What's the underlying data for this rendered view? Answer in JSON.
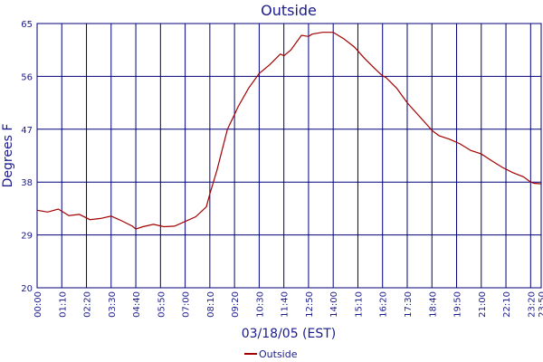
{
  "chart_data": {
    "type": "line",
    "title": "Outside",
    "xlabel": "03/18/05 (EST)",
    "ylabel": "Degrees F",
    "ylim": [
      20,
      65
    ],
    "yticks": [
      20,
      29,
      38,
      47,
      56,
      65
    ],
    "xticks": [
      "00:00",
      "01:10",
      "02:20",
      "03:30",
      "04:40",
      "05:50",
      "07:00",
      "08:10",
      "09:20",
      "10:30",
      "11:40",
      "12:50",
      "14:00",
      "15:10",
      "16:20",
      "17:30",
      "18:40",
      "19:50",
      "21:00",
      "22:10",
      "23:20",
      "23:50"
    ],
    "grid": true,
    "legend": "bottom-center",
    "colors": {
      "series": "#a30000",
      "grid": "#00007a",
      "text": "#1a1a8c"
    },
    "series": [
      {
        "name": "Outside",
        "x": [
          "00:00",
          "00:30",
          "01:00",
          "01:30",
          "02:00",
          "02:30",
          "03:00",
          "03:30",
          "04:00",
          "04:30",
          "04:40",
          "05:00",
          "05:30",
          "06:00",
          "06:30",
          "07:00",
          "07:30",
          "08:00",
          "08:10",
          "08:30",
          "09:00",
          "09:20",
          "09:30",
          "10:00",
          "10:30",
          "11:00",
          "11:30",
          "11:40",
          "12:00",
          "12:30",
          "12:50",
          "13:00",
          "13:30",
          "14:00",
          "14:30",
          "15:00",
          "15:30",
          "16:00",
          "16:20",
          "16:30",
          "17:00",
          "17:30",
          "18:00",
          "18:30",
          "18:40",
          "19:00",
          "19:30",
          "20:00",
          "20:30",
          "21:00",
          "21:30",
          "22:00",
          "22:30",
          "23:00",
          "23:20",
          "23:30",
          "23:50"
        ],
        "values": [
          33.2,
          32.9,
          33.4,
          32.3,
          32.5,
          31.6,
          31.8,
          32.2,
          31.4,
          30.5,
          30.0,
          30.4,
          30.8,
          30.4,
          30.5,
          31.3,
          32.1,
          33.8,
          36.0,
          40.0,
          47.0,
          49.5,
          50.8,
          54.0,
          56.5,
          58.0,
          59.8,
          59.5,
          60.5,
          63.0,
          62.8,
          63.2,
          63.5,
          63.5,
          62.4,
          61.0,
          59.0,
          57.2,
          56.1,
          55.8,
          54.0,
          51.5,
          49.5,
          47.5,
          46.8,
          45.9,
          45.3,
          44.5,
          43.4,
          42.8,
          41.6,
          40.5,
          39.6,
          38.9,
          38.0,
          37.8,
          37.7
        ]
      }
    ]
  }
}
